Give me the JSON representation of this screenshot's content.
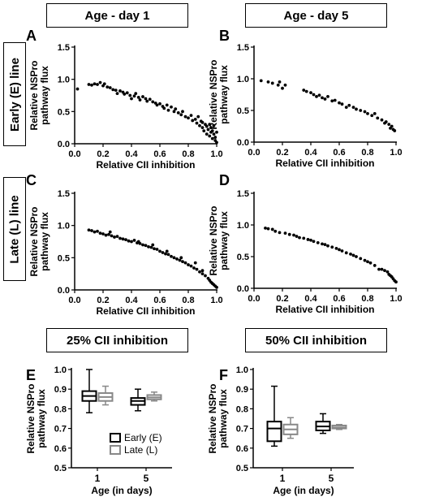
{
  "headers": {
    "col1": "Age - day 1",
    "col2": "Age - day 5",
    "row1": "Early (E) line",
    "row2": "Late (L) line",
    "bottom1": "25% CII inhibition",
    "bottom2": "50% CII inhibition"
  },
  "colors": {
    "early": "#000000",
    "late": "#888888"
  },
  "chart_data": [
    {
      "panel": "A",
      "type": "scatter",
      "xlabel": "Relative CII inhibition",
      "ylabel": [
        "Relative NSPro",
        "pathway flux"
      ],
      "xlim": [
        0.0,
        1.0
      ],
      "ylim": [
        0.0,
        1.5
      ],
      "xticks": [
        "0.0",
        "0.2",
        "0.4",
        "0.6",
        "0.8",
        "1.0"
      ],
      "yticks": [
        "0.0",
        "0.5",
        "1.0",
        "1.5"
      ],
      "points": [
        [
          0.02,
          0.85
        ],
        [
          0.1,
          0.92
        ],
        [
          0.12,
          0.91
        ],
        [
          0.14,
          0.93
        ],
        [
          0.16,
          0.92
        ],
        [
          0.18,
          0.95
        ],
        [
          0.2,
          0.9
        ],
        [
          0.21,
          0.93
        ],
        [
          0.23,
          0.88
        ],
        [
          0.25,
          0.87
        ],
        [
          0.27,
          0.84
        ],
        [
          0.29,
          0.83
        ],
        [
          0.3,
          0.78
        ],
        [
          0.32,
          0.82
        ],
        [
          0.34,
          0.8
        ],
        [
          0.35,
          0.77
        ],
        [
          0.37,
          0.79
        ],
        [
          0.39,
          0.75
        ],
        [
          0.4,
          0.7
        ],
        [
          0.42,
          0.74
        ],
        [
          0.43,
          0.78
        ],
        [
          0.45,
          0.72
        ],
        [
          0.46,
          0.68
        ],
        [
          0.48,
          0.73
        ],
        [
          0.5,
          0.7
        ],
        [
          0.51,
          0.66
        ],
        [
          0.53,
          0.69
        ],
        [
          0.55,
          0.65
        ],
        [
          0.57,
          0.63
        ],
        [
          0.58,
          0.6
        ],
        [
          0.6,
          0.62
        ],
        [
          0.62,
          0.58
        ],
        [
          0.63,
          0.55
        ],
        [
          0.65,
          0.6
        ],
        [
          0.66,
          0.52
        ],
        [
          0.68,
          0.57
        ],
        [
          0.7,
          0.5
        ],
        [
          0.71,
          0.54
        ],
        [
          0.73,
          0.48
        ],
        [
          0.75,
          0.45
        ],
        [
          0.76,
          0.5
        ],
        [
          0.78,
          0.42
        ],
        [
          0.8,
          0.4
        ],
        [
          0.82,
          0.44
        ],
        [
          0.83,
          0.36
        ],
        [
          0.85,
          0.38
        ],
        [
          0.86,
          0.32
        ],
        [
          0.87,
          0.42
        ],
        [
          0.88,
          0.28
        ],
        [
          0.89,
          0.35
        ],
        [
          0.9,
          0.25
        ],
        [
          0.9,
          0.33
        ],
        [
          0.91,
          0.2
        ],
        [
          0.92,
          0.3
        ],
        [
          0.93,
          0.15
        ],
        [
          0.93,
          0.27
        ],
        [
          0.94,
          0.22
        ],
        [
          0.95,
          0.12
        ],
        [
          0.95,
          0.3
        ],
        [
          0.96,
          0.18
        ],
        [
          0.96,
          0.25
        ],
        [
          0.97,
          0.08
        ],
        [
          0.97,
          0.2
        ],
        [
          0.98,
          0.15
        ],
        [
          0.98,
          0.28
        ],
        [
          0.99,
          0.1
        ],
        [
          0.99,
          0.05
        ],
        [
          1.0,
          0.18
        ],
        [
          1.0,
          0.02
        ]
      ]
    },
    {
      "panel": "B",
      "type": "scatter",
      "xlabel": "Relative CII inhibition",
      "ylabel": [
        "Relative NSPro",
        "pathway flux"
      ],
      "xlim": [
        0.0,
        1.0
      ],
      "ylim": [
        0.0,
        1.5
      ],
      "xticks": [
        "0.0",
        "0.2",
        "0.4",
        "0.6",
        "0.8",
        "1.0"
      ],
      "yticks": [
        "0.0",
        "0.5",
        "1.0",
        "1.5"
      ],
      "points": [
        [
          0.05,
          0.97
        ],
        [
          0.1,
          0.95
        ],
        [
          0.13,
          0.93
        ],
        [
          0.17,
          0.9
        ],
        [
          0.18,
          0.95
        ],
        [
          0.2,
          0.85
        ],
        [
          0.22,
          0.9
        ],
        [
          0.35,
          0.82
        ],
        [
          0.37,
          0.8
        ],
        [
          0.4,
          0.78
        ],
        [
          0.42,
          0.75
        ],
        [
          0.44,
          0.72
        ],
        [
          0.46,
          0.74
        ],
        [
          0.48,
          0.7
        ],
        [
          0.5,
          0.68
        ],
        [
          0.52,
          0.72
        ],
        [
          0.55,
          0.65
        ],
        [
          0.57,
          0.66
        ],
        [
          0.6,
          0.62
        ],
        [
          0.62,
          0.6
        ],
        [
          0.65,
          0.55
        ],
        [
          0.67,
          0.58
        ],
        [
          0.7,
          0.55
        ],
        [
          0.72,
          0.52
        ],
        [
          0.75,
          0.5
        ],
        [
          0.78,
          0.48
        ],
        [
          0.8,
          0.45
        ],
        [
          0.83,
          0.42
        ],
        [
          0.85,
          0.45
        ],
        [
          0.87,
          0.38
        ],
        [
          0.9,
          0.35
        ],
        [
          0.92,
          0.3
        ],
        [
          0.93,
          0.32
        ],
        [
          0.95,
          0.28
        ],
        [
          0.96,
          0.22
        ],
        [
          0.97,
          0.25
        ],
        [
          0.98,
          0.2
        ],
        [
          0.99,
          0.18
        ]
      ]
    },
    {
      "panel": "C",
      "type": "scatter",
      "xlabel": "Relative CII inhibition",
      "ylabel": [
        "Relative NSPro",
        "pathway flux"
      ],
      "xlim": [
        0.0,
        1.0
      ],
      "ylim": [
        0.0,
        1.5
      ],
      "xticks": [
        "0.0",
        "0.2",
        "0.4",
        "0.6",
        "0.8",
        "1.0"
      ],
      "yticks": [
        "0.0",
        "0.5",
        "1.0",
        "1.5"
      ],
      "points": [
        [
          0.1,
          0.93
        ],
        [
          0.12,
          0.92
        ],
        [
          0.14,
          0.9
        ],
        [
          0.16,
          0.91
        ],
        [
          0.18,
          0.88
        ],
        [
          0.2,
          0.87
        ],
        [
          0.22,
          0.85
        ],
        [
          0.24,
          0.86
        ],
        [
          0.26,
          0.84
        ],
        [
          0.28,
          0.82
        ],
        [
          0.3,
          0.83
        ],
        [
          0.32,
          0.8
        ],
        [
          0.34,
          0.79
        ],
        [
          0.36,
          0.78
        ],
        [
          0.38,
          0.76
        ],
        [
          0.4,
          0.75
        ],
        [
          0.42,
          0.77
        ],
        [
          0.44,
          0.73
        ],
        [
          0.46,
          0.72
        ],
        [
          0.48,
          0.7
        ],
        [
          0.5,
          0.69
        ],
        [
          0.52,
          0.67
        ],
        [
          0.54,
          0.66
        ],
        [
          0.56,
          0.64
        ],
        [
          0.58,
          0.63
        ],
        [
          0.6,
          0.6
        ],
        [
          0.62,
          0.58
        ],
        [
          0.64,
          0.56
        ],
        [
          0.66,
          0.55
        ],
        [
          0.68,
          0.52
        ],
        [
          0.7,
          0.5
        ],
        [
          0.72,
          0.48
        ],
        [
          0.74,
          0.46
        ],
        [
          0.76,
          0.44
        ],
        [
          0.78,
          0.42
        ],
        [
          0.8,
          0.39
        ],
        [
          0.82,
          0.37
        ],
        [
          0.84,
          0.34
        ],
        [
          0.86,
          0.32
        ],
        [
          0.88,
          0.28
        ],
        [
          0.9,
          0.25
        ],
        [
          0.92,
          0.22
        ],
        [
          0.94,
          0.18
        ],
        [
          0.95,
          0.15
        ],
        [
          0.96,
          0.12
        ],
        [
          0.97,
          0.1
        ],
        [
          0.98,
          0.08
        ],
        [
          0.99,
          0.06
        ],
        [
          1.0,
          0.04
        ],
        [
          0.25,
          0.9
        ],
        [
          0.45,
          0.75
        ],
        [
          0.55,
          0.7
        ],
        [
          0.65,
          0.6
        ],
        [
          0.75,
          0.5
        ],
        [
          0.85,
          0.42
        ],
        [
          0.9,
          0.3
        ]
      ]
    },
    {
      "panel": "D",
      "type": "scatter",
      "xlabel": "Relative CII inhibition",
      "ylabel": [
        "Relative NSPro",
        "pathway flux"
      ],
      "xlim": [
        0.0,
        1.0
      ],
      "ylim": [
        0.0,
        1.5
      ],
      "xticks": [
        "0.0",
        "0.2",
        "0.4",
        "0.6",
        "0.8",
        "1.0"
      ],
      "yticks": [
        "0.0",
        "0.5",
        "1.0",
        "1.5"
      ],
      "points": [
        [
          0.08,
          0.95
        ],
        [
          0.1,
          0.94
        ],
        [
          0.13,
          0.93
        ],
        [
          0.15,
          0.9
        ],
        [
          0.18,
          0.88
        ],
        [
          0.22,
          0.87
        ],
        [
          0.25,
          0.85
        ],
        [
          0.28,
          0.84
        ],
        [
          0.3,
          0.82
        ],
        [
          0.32,
          0.8
        ],
        [
          0.35,
          0.79
        ],
        [
          0.38,
          0.77
        ],
        [
          0.4,
          0.76
        ],
        [
          0.42,
          0.74
        ],
        [
          0.45,
          0.72
        ],
        [
          0.48,
          0.7
        ],
        [
          0.5,
          0.69
        ],
        [
          0.52,
          0.67
        ],
        [
          0.55,
          0.65
        ],
        [
          0.58,
          0.63
        ],
        [
          0.6,
          0.61
        ],
        [
          0.62,
          0.59
        ],
        [
          0.65,
          0.56
        ],
        [
          0.68,
          0.54
        ],
        [
          0.7,
          0.52
        ],
        [
          0.72,
          0.5
        ],
        [
          0.75,
          0.47
        ],
        [
          0.78,
          0.44
        ],
        [
          0.8,
          0.42
        ],
        [
          0.82,
          0.4
        ],
        [
          0.85,
          0.36
        ],
        [
          0.88,
          0.3
        ],
        [
          0.9,
          0.3
        ],
        [
          0.92,
          0.28
        ],
        [
          0.94,
          0.26
        ],
        [
          0.95,
          0.22
        ],
        [
          0.96,
          0.2
        ],
        [
          0.97,
          0.18
        ],
        [
          0.98,
          0.15
        ],
        [
          0.99,
          0.12
        ],
        [
          1.0,
          0.1
        ]
      ]
    },
    {
      "panel": "E",
      "type": "box",
      "xlabel": "Age (in days)",
      "ylabel": [
        "Relative NSPro",
        "pathway flux"
      ],
      "ylim": [
        0.5,
        1.0
      ],
      "yticks": [
        "0.5",
        "0.6",
        "0.7",
        "0.8",
        "0.9",
        "1.0"
      ],
      "categories": [
        "1",
        "5"
      ],
      "series": [
        {
          "name": "Early (E)",
          "boxes": [
            {
              "min": 0.78,
              "q1": 0.84,
              "median": 0.865,
              "q3": 0.89,
              "max": 1.0
            },
            {
              "min": 0.79,
              "q1": 0.82,
              "median": 0.84,
              "q3": 0.855,
              "max": 0.9
            }
          ]
        },
        {
          "name": "Late (L)",
          "boxes": [
            {
              "min": 0.82,
              "q1": 0.84,
              "median": 0.86,
              "q3": 0.88,
              "max": 0.915
            },
            {
              "min": 0.84,
              "q1": 0.848,
              "median": 0.858,
              "q3": 0.87,
              "max": 0.885
            }
          ]
        }
      ],
      "legend": "inside"
    },
    {
      "panel": "F",
      "type": "box",
      "xlabel": "Age (in days)",
      "ylabel": [
        "Relative NSPro",
        "pathway flux"
      ],
      "ylim": [
        0.5,
        1.0
      ],
      "yticks": [
        "0.5",
        "0.6",
        "0.7",
        "0.8",
        "0.9",
        "1.0"
      ],
      "categories": [
        "1",
        "5"
      ],
      "series": [
        {
          "name": "Early (E)",
          "boxes": [
            {
              "min": 0.61,
              "q1": 0.635,
              "median": 0.7,
              "q3": 0.735,
              "max": 0.915
            },
            {
              "min": 0.675,
              "q1": 0.69,
              "median": 0.71,
              "q3": 0.735,
              "max": 0.775
            }
          ]
        },
        {
          "name": "Late (L)",
          "boxes": [
            {
              "min": 0.65,
              "q1": 0.67,
              "median": 0.695,
              "q3": 0.72,
              "max": 0.755
            },
            {
              "min": 0.695,
              "q1": 0.7,
              "median": 0.705,
              "q3": 0.715,
              "max": 0.72
            }
          ]
        }
      ]
    }
  ]
}
